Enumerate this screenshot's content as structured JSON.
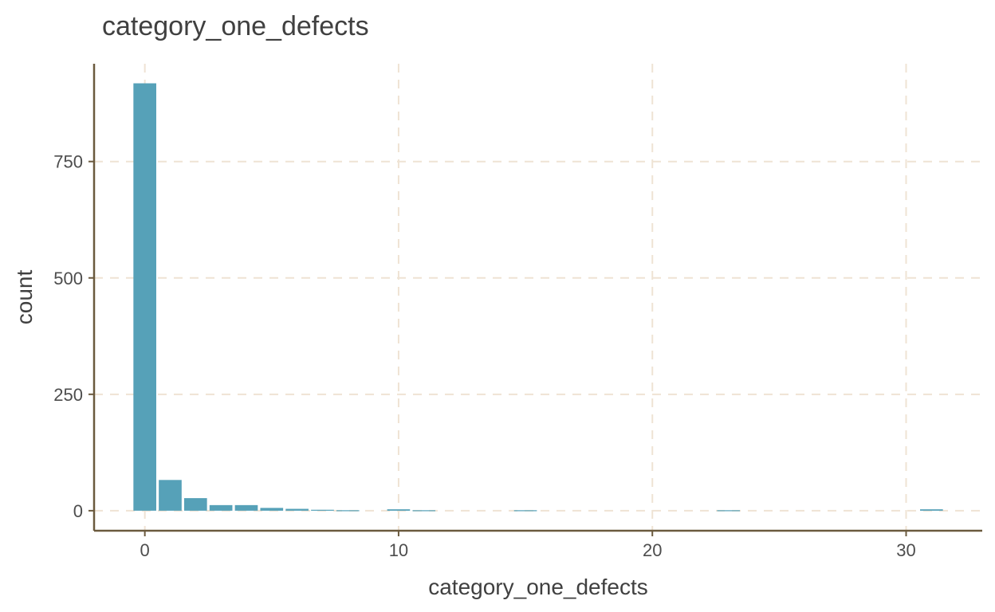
{
  "chart_data": {
    "type": "bar",
    "title": "category_one_defects",
    "xlabel": "category_one_defects",
    "ylabel": "count",
    "x": [
      0,
      1,
      2,
      3,
      4,
      5,
      6,
      7,
      8,
      10,
      11,
      15,
      23,
      31
    ],
    "values": [
      918,
      66,
      27,
      12,
      12,
      6,
      4,
      2,
      1,
      3,
      1,
      1,
      1,
      3
    ],
    "xlim": [
      -2,
      33
    ],
    "ylim": [
      -43,
      960
    ],
    "xticks": [
      0,
      10,
      20,
      30
    ],
    "yticks": [
      0,
      250,
      500,
      750
    ],
    "xtick_labels": [
      "0",
      "10",
      "20",
      "30"
    ],
    "ytick_labels": [
      "0",
      "250",
      "500",
      "750"
    ],
    "grid": true,
    "colors": {
      "bar": "#56a1b8",
      "grid": "#efe3d4",
      "axis": "#6b5a3e"
    }
  }
}
